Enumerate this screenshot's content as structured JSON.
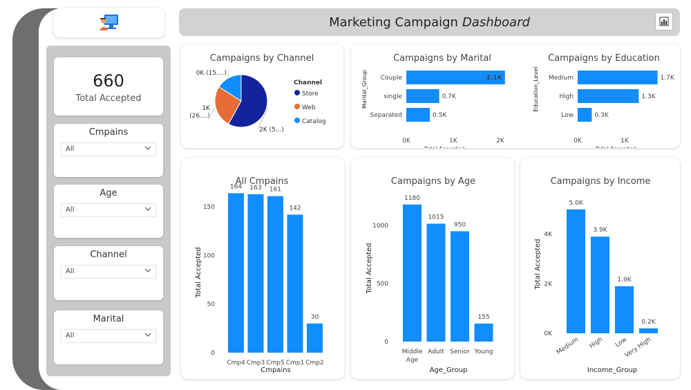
{
  "header": {
    "title": "Marketing Campaign",
    "title_italic": "Dashboard"
  },
  "icons": {
    "logo": "computer-user-logo-icon",
    "report": "report-icon",
    "dropdown": "chevron-down-icon"
  },
  "kpi": {
    "value": "660",
    "label": "Total Accepted"
  },
  "slicers": [
    {
      "title": "Cmpains",
      "value": "All"
    },
    {
      "title": "Age",
      "value": "All"
    },
    {
      "title": "Channel",
      "value": "All"
    },
    {
      "title": "Marital",
      "value": "All"
    }
  ],
  "colors": {
    "bar": "#118dff",
    "store": "#12239e",
    "web": "#e66c37",
    "catalog": "#118dff"
  },
  "chart_data": [
    {
      "type": "pie",
      "title": "Campaigns by Channel",
      "legend_title": "Channel",
      "categories": [
        "Store",
        "Web",
        "Catalog"
      ],
      "values": [
        0.58,
        0.26,
        0.16
      ],
      "slice_labels": [
        "2K (5...)",
        "1K (26....)",
        "0K (15....)"
      ],
      "legend": "right"
    },
    {
      "type": "bar",
      "orientation": "horizontal",
      "title": "Campaigns by Marital",
      "categories": [
        "Couple",
        "single",
        "Separated"
      ],
      "values": [
        2100,
        700,
        500
      ],
      "data_labels": [
        "2.1K",
        "0.7K",
        "0.5K"
      ],
      "xlabel": "Total Accepted",
      "ylabel": "Marital_Group",
      "xlim": [
        0,
        2000
      ],
      "xticks": [
        "0K",
        "1K",
        "2K"
      ]
    },
    {
      "type": "bar",
      "orientation": "horizontal",
      "title": "Campaigns by Education",
      "categories": [
        "Medium",
        "High",
        "Low"
      ],
      "values": [
        1700,
        1300,
        300
      ],
      "data_labels": [
        "1.7K",
        "1.3K",
        "0.3K"
      ],
      "xlabel": "Total Accepted",
      "ylabel": "Education_Level",
      "xlim": [
        0,
        2000
      ],
      "xticks": [
        "0K",
        "1K"
      ]
    },
    {
      "type": "bar",
      "title": "All Cmpains",
      "categories": [
        "Cmp4",
        "Cmp3",
        "Cmp5",
        "Cmp1",
        "Cmp2"
      ],
      "values": [
        164,
        163,
        161,
        142,
        30
      ],
      "data_labels": [
        "164",
        "163",
        "161",
        "142",
        "30"
      ],
      "xlabel": "Cmpains",
      "ylabel": "Total Accepted",
      "ylim": [
        0,
        170
      ],
      "yticks": [
        0,
        50,
        100,
        150
      ]
    },
    {
      "type": "bar",
      "title": "Campaigns by Age",
      "categories": [
        "Middle Age",
        "Adult",
        "Senior",
        "Young"
      ],
      "values": [
        1180,
        1015,
        950,
        155
      ],
      "data_labels": [
        "1180",
        "1015",
        "950",
        "155"
      ],
      "xlabel": "Age_Group",
      "ylabel": "Total Accepted",
      "ylim": [
        0,
        1250
      ],
      "yticks": [
        0,
        500,
        1000
      ]
    },
    {
      "type": "bar",
      "title": "Campaigns by Income",
      "categories": [
        "Medium",
        "High",
        "Low",
        "Very High"
      ],
      "values": [
        5000,
        3900,
        1900,
        200
      ],
      "data_labels": [
        "5.0K",
        "3.9K",
        "1.9K",
        "0.2K"
      ],
      "xlabel": "Income_Group",
      "ylabel": "Total Accepted",
      "ylim": [
        0,
        5300
      ],
      "yticks": [
        0,
        2000,
        4000
      ],
      "ytick_labels": [
        "0K",
        "2K",
        "4K"
      ]
    }
  ]
}
